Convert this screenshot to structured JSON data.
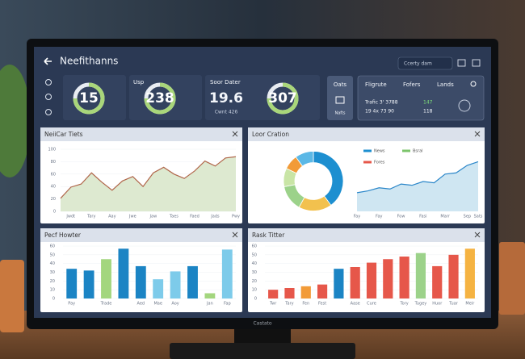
{
  "header": {
    "title": "Neefithanns",
    "search": "Ccerty dam"
  },
  "kpis": [
    {
      "value": 15
    },
    {
      "label": "Usp",
      "value": 238
    },
    {
      "label": "Soor Dater",
      "value": 19.6,
      "sub": "Cwnt 426",
      "gauge": 307
    }
  ],
  "tab": {
    "title": "Oats",
    "sub": "Nafts"
  },
  "table": {
    "headers": [
      "Fligrute",
      "Fofers",
      "Lands"
    ],
    "rows": [
      [
        "Trafic 3' 3788",
        "147"
      ],
      [
        "19 4x 73 90",
        "118"
      ]
    ]
  },
  "chart_data": [
    {
      "type": "area",
      "title": "NeiiCar Tiets",
      "color": "#b0664a",
      "fill": "#dde9d0",
      "categories": [
        null,
        "Jwdt",
        null,
        "Tary",
        null,
        "Aay",
        null,
        "Jwe",
        null,
        "Jaw",
        null,
        "Taes",
        null,
        "Faed",
        null,
        "Jads",
        null,
        "Pwy"
      ],
      "values": [
        21,
        39,
        44,
        62,
        47,
        34,
        49,
        56,
        40,
        62,
        71,
        60,
        53,
        65,
        81,
        73,
        86,
        88
      ],
      "ylim": [
        0,
        100
      ],
      "yticks": [
        0,
        20,
        40,
        60,
        80,
        100
      ]
    },
    {
      "type": "pie",
      "title": "Loor Cration",
      "values": [
        40,
        18,
        14,
        10,
        8,
        10
      ],
      "colors": [
        "#1d8fd0",
        "#f2c14e",
        "#9cd28a",
        "#c9e5a6",
        "#f29b38",
        "#5bb8e6"
      ],
      "legend": [
        {
          "name": "News",
          "color": "#1d8fd0"
        },
        {
          "name": "Bsral",
          "color": "#7cc46b"
        },
        {
          "name": "Fores",
          "color": "#e6574a"
        }
      ]
    },
    {
      "type": "area",
      "color": "#2a86c9",
      "fill": "#cfe6f2",
      "categories": [
        "Fay",
        null,
        "Fay",
        null,
        "Fow",
        null,
        "Fasi",
        null,
        "Marr",
        null,
        "Sep",
        "Sats"
      ],
      "values": [
        30,
        33,
        38,
        36,
        44,
        42,
        48,
        46,
        60,
        62,
        74,
        80
      ],
      "ylim": [
        0,
        100
      ]
    },
    {
      "type": "bar",
      "title": "Pecf Howter",
      "categories": [
        "Pay",
        null,
        "Trade",
        null,
        "Aed",
        "Mae",
        "Aoy",
        null,
        "Jan",
        "Fap"
      ],
      "values": [
        34,
        32,
        45,
        57,
        37,
        22,
        31,
        37,
        6,
        56
      ],
      "colors": [
        "#1b84c4",
        "#1b84c4",
        "#a3d67e",
        "#1b84c4",
        "#1b84c4",
        "#7dcbea",
        "#7dcbea",
        "#1b84c4",
        "#a3d67e",
        "#7dcbea"
      ],
      "ylim": [
        0,
        60
      ],
      "yticks": [
        0,
        10,
        20,
        30,
        40,
        50,
        60
      ]
    },
    {
      "type": "bar",
      "title": "Rask Titter",
      "categories": [
        "Twr",
        "Tary",
        "Fen",
        "Fest",
        null,
        "Aase",
        "Cure",
        null,
        "Tory",
        "Tugey",
        "Huor",
        "Tuar",
        "Meir"
      ],
      "values": [
        10,
        12,
        14,
        16,
        34,
        36,
        41,
        45,
        48,
        52,
        37,
        50,
        57
      ],
      "colors": [
        "#e6574a",
        "#e6574a",
        "#f29b38",
        "#e6574a",
        "#1b84c4",
        "#e6574a",
        "#e6574a",
        "#e6574a",
        "#e6574a",
        "#9cd28a",
        "#e6574a",
        "#e6574a",
        "#f5b342"
      ],
      "ylim": [
        0,
        60
      ],
      "yticks": [
        0,
        10,
        20,
        30,
        40,
        50,
        60
      ]
    }
  ],
  "footer": {
    "brand": "Castato"
  }
}
